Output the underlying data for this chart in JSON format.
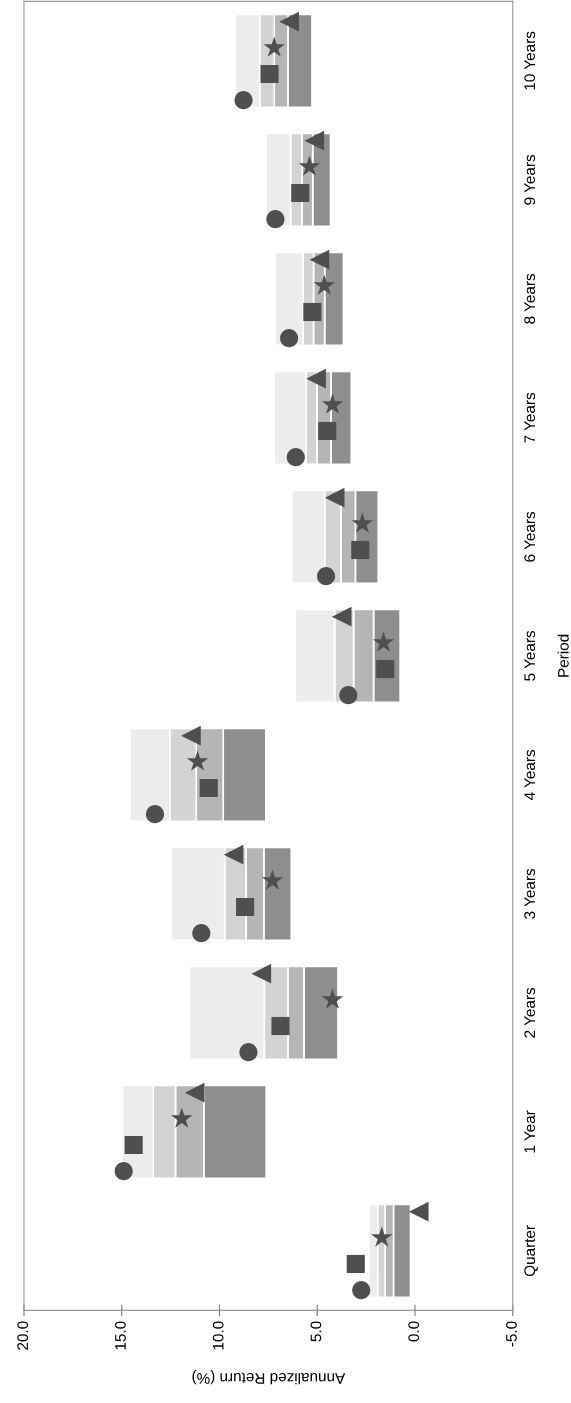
{
  "chart_data": {
    "type": "bar",
    "orientation": "horizontal",
    "xlabel": "Annualized Return (%)",
    "ylabel": "Period",
    "categories": [
      "10 Years",
      "9 Years",
      "8 Years",
      "7 Years",
      "6 Years",
      "5 Years",
      "4 Years",
      "3 Years",
      "2 Years",
      "1 Year",
      "Quarter"
    ],
    "series": [
      {
        "color": "#8e8e8e",
        "base": [
          5.27,
          4.32,
          3.66,
          3.26,
          1.88,
          0.76,
          7.63,
          6.33,
          3.94,
          7.61,
          0.23
        ],
        "values": [
          1.23,
          0.91,
          0.96,
          1.04,
          1.17,
          1.36,
          2.18,
          1.4,
          1.74,
          3.19,
          0.87
        ]
      },
      {
        "color": "#b5b5b5",
        "base": [
          6.5,
          5.23,
          4.62,
          4.3,
          3.05,
          2.12,
          9.81,
          7.73,
          5.68,
          10.8,
          1.1
        ],
        "values": [
          0.7,
          0.55,
          0.57,
          0.72,
          0.74,
          1.02,
          1.38,
          0.91,
          0.82,
          1.45,
          0.43
        ]
      },
      {
        "color": "#d3d3d3",
        "base": [
          7.2,
          5.78,
          5.19,
          5.02,
          3.79,
          3.14,
          11.19,
          8.64,
          6.5,
          12.25,
          1.53
        ],
        "values": [
          0.74,
          0.58,
          0.53,
          0.55,
          0.83,
          0.97,
          1.35,
          1.09,
          1.21,
          1.14,
          0.38
        ]
      },
      {
        "color": "#ececec",
        "base": [
          7.94,
          6.36,
          5.72,
          5.57,
          4.62,
          4.11,
          12.54,
          9.73,
          7.71,
          13.39,
          1.91
        ],
        "values": [
          1.25,
          1.25,
          1.44,
          1.63,
          1.69,
          2.01,
          2.04,
          2.73,
          3.81,
          1.57,
          0.46
        ]
      },
      {
        "type": "scatter",
        "marker": "circle",
        "color": "#4f4f4f",
        "values": [
          8.77,
          7.14,
          6.44,
          6.1,
          4.55,
          3.41,
          13.3,
          10.93,
          8.52,
          14.9,
          2.75
        ]
      },
      {
        "type": "scatter",
        "marker": "square",
        "color": "#4f4f4f",
        "values": [
          7.44,
          5.87,
          5.25,
          4.49,
          2.8,
          1.52,
          10.55,
          8.69,
          6.88,
          14.39,
          3.03
        ]
      },
      {
        "type": "scatter",
        "marker": "star",
        "color": "#4f4f4f",
        "values": [
          7.2,
          5.4,
          4.64,
          4.22,
          2.69,
          1.61,
          11.12,
          7.29,
          4.22,
          11.93,
          1.7
        ]
      },
      {
        "type": "scatter",
        "marker": "triangle",
        "color": "#4f4f4f",
        "values": [
          6.44,
          5.15,
          4.89,
          5.06,
          4.11,
          3.75,
          11.46,
          9.28,
          7.86,
          11.27,
          -0.19
        ]
      }
    ],
    "xlim": [
      20,
      -5
    ],
    "xticks": [
      {
        "value": 20,
        "label": "20.0"
      },
      {
        "value": 15,
        "label": "15.0"
      },
      {
        "value": 10,
        "label": "10.0"
      },
      {
        "value": 5,
        "label": "5.0"
      },
      {
        "value": 0,
        "label": "0.0"
      },
      {
        "value": -5,
        "label": "-5.0"
      }
    ]
  }
}
